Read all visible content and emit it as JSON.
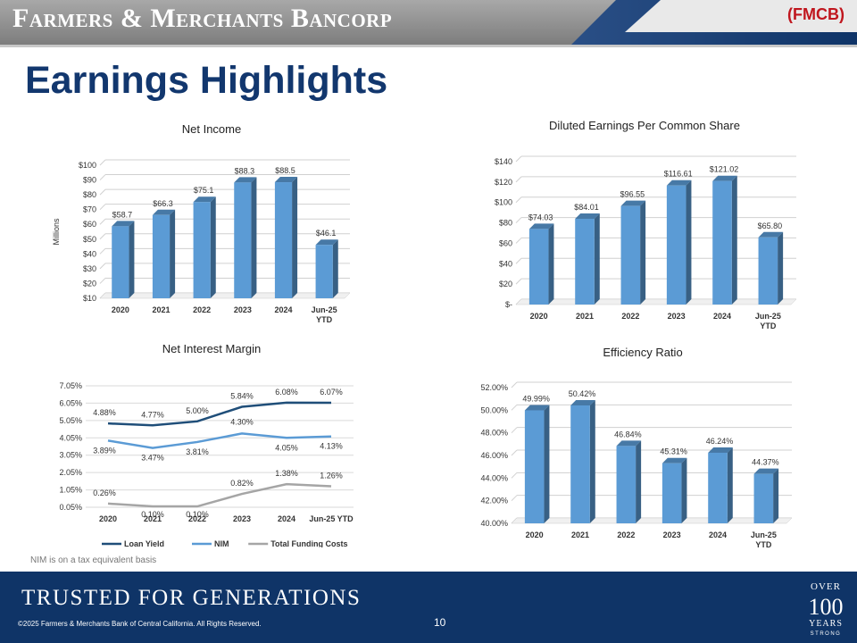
{
  "header": {
    "brand": "Farmers & Merchants Bancorp",
    "ticker": "(FMCB)",
    "colors": {
      "gray": "#9a9a9a",
      "navy": "#12376e",
      "red": "#c0161e"
    }
  },
  "title": "Earnings Highlights",
  "footnote": "NIM is on a tax equivalent basis",
  "footer": {
    "slogan": "TRUSTED FOR GENERATIONS",
    "copyright": "©2025 Farmers & Merchants Bank of Central California. All Rights Reserved.",
    "page_number": "10",
    "badge": {
      "over": "OVER",
      "number": "100",
      "years": "YEARS",
      "strong": "STRONG"
    }
  },
  "chart_data": [
    {
      "id": "net-income",
      "type": "bar",
      "title": "Net Income",
      "ylabel": "Millions",
      "categories": [
        "2020",
        "2021",
        "2022",
        "2023",
        "2024",
        "Jun-25\nYTD"
      ],
      "values": [
        58.7,
        66.3,
        75.1,
        88.3,
        88.5,
        46.1
      ],
      "labels": [
        "$58.7",
        "$66.3",
        "$75.1",
        "$88.3",
        "$88.5",
        "$46.1"
      ],
      "yticks": [
        "$10",
        "$20",
        "$30",
        "$40",
        "$50",
        "$60",
        "$70",
        "$80",
        "$90",
        "$100"
      ],
      "ylim": [
        10,
        100
      ],
      "grid": true,
      "color": "#5b9bd5"
    },
    {
      "id": "diluted-eps",
      "type": "bar",
      "title": "Diluted Earnings Per Common Share",
      "categories": [
        "2020",
        "2021",
        "2022",
        "2023",
        "2024",
        "Jun-25\nYTD"
      ],
      "values": [
        74.03,
        84.01,
        96.55,
        116.61,
        121.02,
        65.8
      ],
      "labels": [
        "$74.03",
        "$84.01",
        "$96.55",
        "$116.61",
        "$121.02",
        "$65.80"
      ],
      "yticks": [
        "$-",
        "$20",
        "$40",
        "$60",
        "$80",
        "$100",
        "$120",
        "$140"
      ],
      "ylim": [
        0,
        140
      ],
      "grid": true,
      "color": "#5b9bd5"
    },
    {
      "id": "nim",
      "type": "line",
      "title": "Net Interest Margin",
      "categories": [
        "2020",
        "2021",
        "2022",
        "2023",
        "2024",
        "Jun-25 YTD"
      ],
      "yticks": [
        "0.05%",
        "1.05%",
        "2.05%",
        "3.05%",
        "4.05%",
        "5.05%",
        "6.05%",
        "7.05%"
      ],
      "ylim": [
        0.05,
        7.05
      ],
      "grid": true,
      "legend": "bottom",
      "series": [
        {
          "name": "Loan Yield",
          "values": [
            4.88,
            4.77,
            5.0,
            5.84,
            6.08,
            6.07
          ],
          "labels": [
            "4.88%",
            "4.77%",
            "5.00%",
            "5.84%",
            "6.08%",
            "6.07%"
          ],
          "color": "#1f4e79"
        },
        {
          "name": "NIM",
          "values": [
            3.89,
            3.47,
            3.81,
            4.3,
            4.05,
            4.13
          ],
          "labels": [
            "3.89%",
            "3.47%",
            "3.81%",
            "4.30%",
            "4.05%",
            "4.13%"
          ],
          "color": "#5b9bd5"
        },
        {
          "name": "Total Funding Costs",
          "values": [
            0.26,
            0.1,
            0.1,
            0.82,
            1.38,
            1.26
          ],
          "labels": [
            "0.26%",
            "0.10%",
            "0.10%",
            "0.82%",
            "1.38%",
            "1.26%"
          ],
          "color": "#a5a5a5"
        }
      ]
    },
    {
      "id": "efficiency-ratio",
      "type": "bar",
      "title": "Efficiency Ratio",
      "categories": [
        "2020",
        "2021",
        "2022",
        "2023",
        "2024",
        "Jun-25\nYTD"
      ],
      "values": [
        49.99,
        50.42,
        46.84,
        45.31,
        46.24,
        44.37
      ],
      "labels": [
        "49.99%",
        "50.42%",
        "46.84%",
        "45.31%",
        "46.24%",
        "44.37%"
      ],
      "yticks": [
        "40.00%",
        "42.00%",
        "44.00%",
        "46.00%",
        "48.00%",
        "50.00%",
        "52.00%"
      ],
      "ylim": [
        40,
        52
      ],
      "grid": true,
      "color": "#5b9bd5"
    }
  ]
}
